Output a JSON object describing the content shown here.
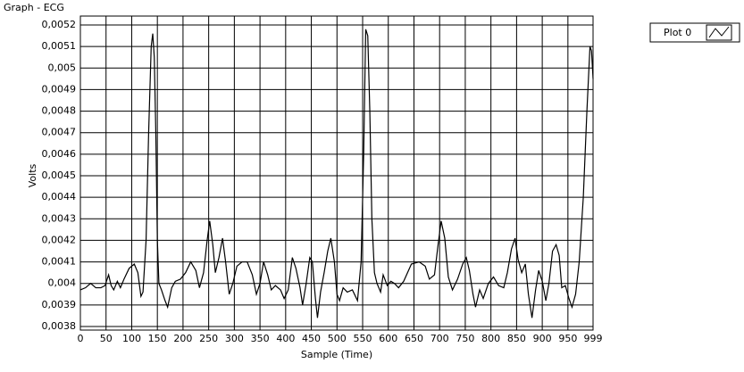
{
  "chart_data": {
    "type": "line",
    "title": "Graph - ECG",
    "x_label": "Sample (Time)",
    "y_label": "Volts",
    "xlim": [
      0,
      999
    ],
    "ylim": [
      0.0038,
      0.0052
    ],
    "grid": true,
    "legend": "top-right",
    "xticks": [
      0,
      50,
      100,
      150,
      200,
      250,
      300,
      350,
      400,
      450,
      500,
      550,
      600,
      650,
      700,
      750,
      800,
      850,
      900,
      950,
      999
    ],
    "yticks": [
      {
        "value": 0.0038,
        "label": "0,0038"
      },
      {
        "value": 0.0039,
        "label": "0,0039"
      },
      {
        "value": 0.004,
        "label": "0,004"
      },
      {
        "value": 0.0041,
        "label": "0,0041"
      },
      {
        "value": 0.0042,
        "label": "0,0042"
      },
      {
        "value": 0.0043,
        "label": "0,0043"
      },
      {
        "value": 0.0044,
        "label": "0,0044"
      },
      {
        "value": 0.0045,
        "label": "0,0045"
      },
      {
        "value": 0.0046,
        "label": "0,0046"
      },
      {
        "value": 0.0047,
        "label": "0,0047"
      },
      {
        "value": 0.0048,
        "label": "0,0048"
      },
      {
        "value": 0.0049,
        "label": "0,0049"
      },
      {
        "value": 0.005,
        "label": "0,005"
      },
      {
        "value": 0.0051,
        "label": "0,0051"
      },
      {
        "value": 0.0052,
        "label": "0,0052"
      }
    ],
    "x": [
      0,
      10,
      20,
      30,
      40,
      48,
      55,
      60,
      65,
      72,
      78,
      85,
      95,
      105,
      112,
      118,
      122,
      128,
      133,
      138,
      141,
      144,
      147,
      150,
      153,
      158,
      165,
      170,
      178,
      185,
      195,
      205,
      215,
      225,
      232,
      240,
      247,
      252,
      258,
      263,
      270,
      277,
      283,
      290,
      297,
      305,
      315,
      325,
      335,
      343,
      350,
      357,
      365,
      372,
      380,
      390,
      397,
      405,
      413,
      420,
      428,
      433,
      440,
      447,
      452,
      458,
      462,
      468,
      475,
      482,
      488,
      495,
      500,
      505,
      512,
      520,
      530,
      540,
      547,
      552,
      556,
      560,
      564,
      568,
      573,
      578,
      585,
      590,
      598,
      605,
      612,
      620,
      630,
      645,
      660,
      672,
      680,
      690,
      697,
      703,
      710,
      717,
      725,
      735,
      745,
      752,
      758,
      765,
      770,
      778,
      785,
      795,
      805,
      815,
      825,
      832,
      840,
      847,
      853,
      860,
      867,
      873,
      880,
      887,
      893,
      900,
      907,
      913,
      920,
      927,
      933,
      938,
      945,
      952,
      958,
      965,
      972,
      980,
      987,
      993,
      996,
      999
    ],
    "series": [
      {
        "name": "Plot 0",
        "color": "#000000",
        "values": [
          0.00397,
          0.00398,
          0.004,
          0.00398,
          0.00398,
          0.00399,
          0.00404,
          0.00399,
          0.00397,
          0.00401,
          0.00398,
          0.00402,
          0.00407,
          0.00409,
          0.00405,
          0.00394,
          0.00396,
          0.0042,
          0.0047,
          0.0051,
          0.00516,
          0.00505,
          0.0047,
          0.0042,
          0.004,
          0.00397,
          0.00392,
          0.00389,
          0.00398,
          0.00401,
          0.00402,
          0.00405,
          0.0041,
          0.00406,
          0.00398,
          0.00405,
          0.0042,
          0.00429,
          0.00418,
          0.00405,
          0.00412,
          0.00421,
          0.0041,
          0.00395,
          0.004,
          0.00408,
          0.0041,
          0.0041,
          0.00404,
          0.00395,
          0.004,
          0.0041,
          0.00404,
          0.00397,
          0.00399,
          0.00397,
          0.00393,
          0.00397,
          0.00412,
          0.00407,
          0.00398,
          0.0039,
          0.004,
          0.00412,
          0.0041,
          0.00393,
          0.00384,
          0.00396,
          0.00405,
          0.00415,
          0.00421,
          0.0041,
          0.00395,
          0.00392,
          0.00398,
          0.00396,
          0.00397,
          0.00392,
          0.0041,
          0.0046,
          0.00518,
          0.00515,
          0.0048,
          0.0043,
          0.00405,
          0.004,
          0.00396,
          0.00404,
          0.00399,
          0.00401,
          0.004,
          0.00398,
          0.00401,
          0.00409,
          0.0041,
          0.00408,
          0.00402,
          0.00404,
          0.00418,
          0.00429,
          0.00421,
          0.00403,
          0.00397,
          0.00402,
          0.00409,
          0.00412,
          0.00406,
          0.00395,
          0.00389,
          0.00397,
          0.00393,
          0.004,
          0.00403,
          0.00399,
          0.00398,
          0.00405,
          0.00416,
          0.00421,
          0.00411,
          0.00405,
          0.00409,
          0.00395,
          0.00384,
          0.00397,
          0.00406,
          0.00401,
          0.00392,
          0.004,
          0.00415,
          0.00418,
          0.00413,
          0.00398,
          0.00399,
          0.00393,
          0.00389,
          0.00395,
          0.0041,
          0.0044,
          0.0048,
          0.0051,
          0.00508,
          0.00495
        ]
      }
    ]
  }
}
